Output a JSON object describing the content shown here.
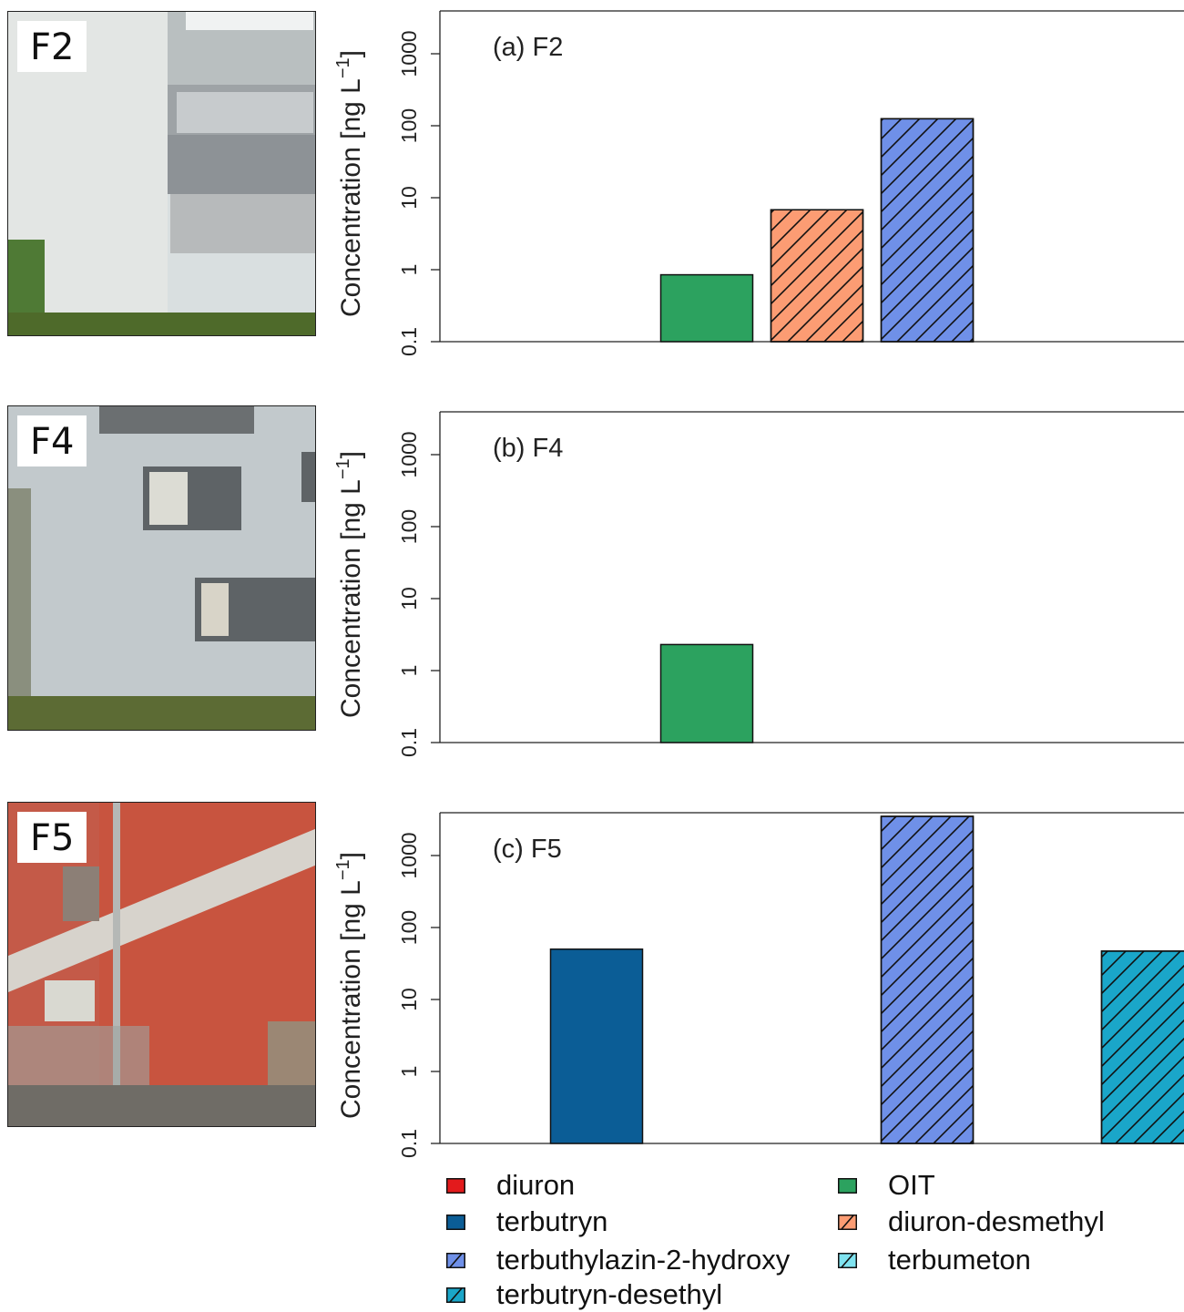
{
  "photos": [
    {
      "label": "F2",
      "description_icon": "building-facade-white-photo"
    },
    {
      "label": "F4",
      "description_icon": "building-facade-grey-photo"
    },
    {
      "label": "F5",
      "description_icon": "building-facade-red-photo"
    }
  ],
  "colors": {
    "diuron": "#e31a1c",
    "terbutryn": "#0b5d96",
    "OIT": "#2ca25f",
    "diuron-desmethyl": "#fc9c73",
    "terbuthylazin-2-hydroxy": "#6f90e8",
    "terbumeton": "#7fe3f0",
    "terbutryn-desethyl": "#1aa6c9"
  },
  "legend": [
    {
      "label": "diuron",
      "color": "#e31a1c",
      "hatched": false
    },
    {
      "label": "OIT",
      "color": "#2ca25f",
      "hatched": false
    },
    {
      "label": "terbutryn",
      "color": "#0b5d96",
      "hatched": false
    },
    {
      "label": "diuron-desmethyl",
      "color": "#fc9c73",
      "hatched": true
    },
    {
      "label": "terbuthylazin-2-hydroxy",
      "color": "#6f90e8",
      "hatched": true
    },
    {
      "label": "terbumeton",
      "color": "#7fe3f0",
      "hatched": true
    },
    {
      "label": "terbutryn-desethyl",
      "color": "#1aa6c9",
      "hatched": true
    }
  ],
  "chart_data": [
    {
      "type": "bar",
      "title": "(a) F2",
      "ylabel": "Concentration [ng L⁻¹]",
      "yscale": "log",
      "ylim": [
        0.1,
        4000
      ],
      "yticks": [
        "0.1",
        "1",
        "10",
        "100",
        "1000"
      ],
      "categories": [
        "diuron",
        "terbutryn",
        "OIT",
        "diuron-desmethyl",
        "terbuthylazin-2-hydroxy",
        "terbumeton",
        "terbutryn-desethyl"
      ],
      "values": [
        null,
        null,
        0.85,
        6.8,
        125,
        null,
        null
      ]
    },
    {
      "type": "bar",
      "title": "(b) F4",
      "ylabel": "Concentration [ng L⁻¹]",
      "yscale": "log",
      "ylim": [
        0.1,
        4000
      ],
      "yticks": [
        "0.1",
        "1",
        "10",
        "100",
        "1000"
      ],
      "categories": [
        "diuron",
        "terbutryn",
        "OIT",
        "diuron-desmethyl",
        "terbuthylazin-2-hydroxy",
        "terbumeton",
        "terbutryn-desethyl"
      ],
      "values": [
        null,
        null,
        2.3,
        null,
        null,
        null,
        null
      ]
    },
    {
      "type": "bar",
      "title": "(c) F5",
      "ylabel": "Concentration [ng L⁻¹]",
      "yscale": "log",
      "ylim": [
        0.1,
        4000
      ],
      "yticks": [
        "0.1",
        "1",
        "10",
        "100",
        "1000"
      ],
      "categories": [
        "diuron",
        "terbutryn",
        "OIT",
        "diuron-desmethyl",
        "terbuthylazin-2-hydroxy",
        "terbumeton",
        "terbutryn-desethyl"
      ],
      "values": [
        null,
        50,
        null,
        null,
        3500,
        null,
        47
      ]
    }
  ]
}
